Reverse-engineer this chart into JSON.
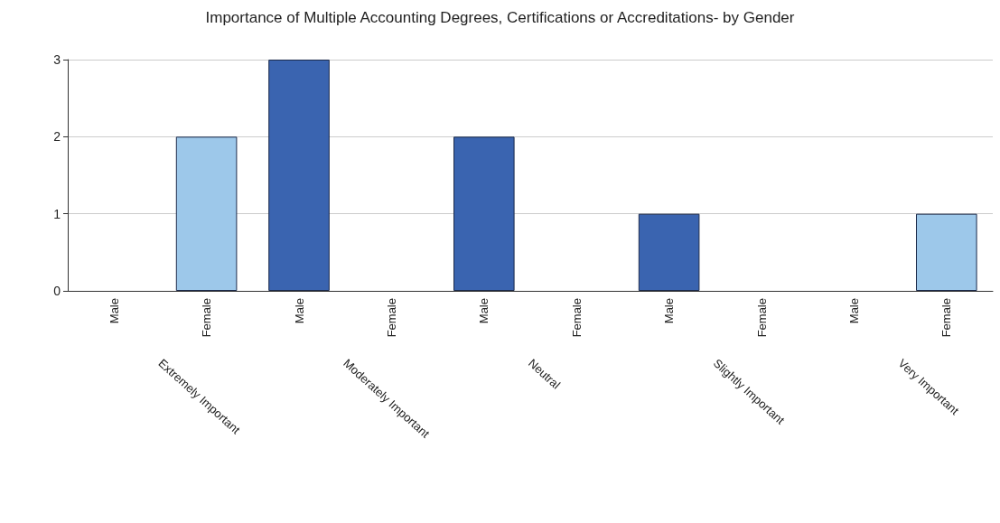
{
  "chart_data": {
    "type": "bar",
    "title": "Importance of Multiple Accounting Degrees, Certifications or Accreditations- by Gender",
    "categories": [
      "Extremely Important",
      "Moderately Important",
      "Neutral",
      "Slightly Important",
      "Very Important"
    ],
    "series": [
      {
        "name": "Male",
        "color": "#3a64b0",
        "values": [
          0,
          3,
          2,
          1,
          0
        ]
      },
      {
        "name": "Female",
        "color": "#9dc8ea",
        "values": [
          2,
          0,
          0,
          0,
          1
        ]
      }
    ],
    "ylim": [
      0,
      3
    ],
    "yticks": [
      0,
      1,
      2,
      3
    ],
    "grid": "y",
    "legend": false
  }
}
